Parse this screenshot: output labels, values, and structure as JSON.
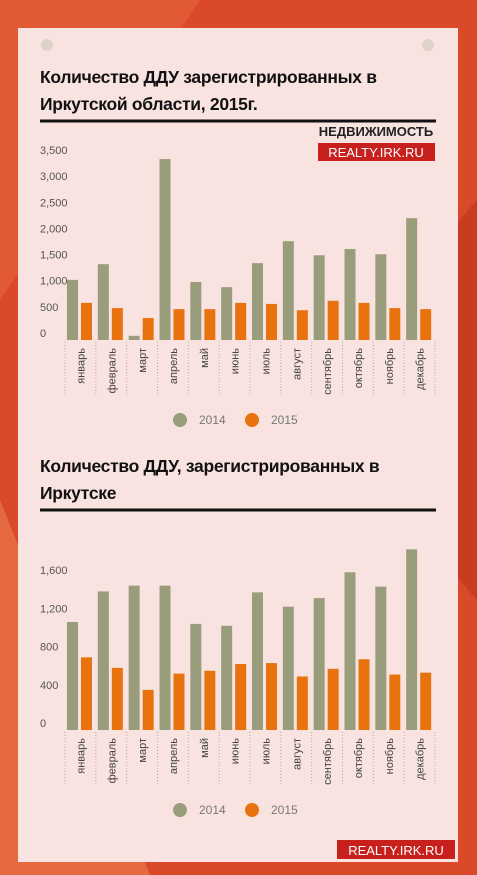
{
  "logo": {
    "name": "НЕДВИЖИМОСТЬ",
    "site": "REALTY.IRK.RU"
  },
  "footer": "REALTY.IRK.RU",
  "chart_data": [
    {
      "type": "bar",
      "title": "Количество ДДУ зарегистрированных в Иркутской области, 2015г.",
      "categories": [
        "январь",
        "февраль",
        "март",
        "апрель",
        "май",
        "июнь",
        "июль",
        "август",
        "сентябрь",
        "октябрь",
        "ноябрь",
        "декабрь"
      ],
      "series": [
        {
          "name": "2014",
          "color": "#9a9d7c",
          "values": [
            1150,
            1450,
            80,
            3460,
            1110,
            1010,
            1470,
            1890,
            1620,
            1740,
            1640,
            2330
          ]
        },
        {
          "name": "2015",
          "color": "#e8730e",
          "values": [
            710,
            610,
            420,
            590,
            590,
            710,
            690,
            570,
            750,
            710,
            610,
            590
          ]
        }
      ],
      "ylim": [
        0,
        3700
      ],
      "yticks": [
        0,
        500,
        {
          "value": 1000,
          "label": "1,000"
        },
        {
          "value": 1500,
          "label": "1,500"
        },
        {
          "value": 2000,
          "label": "2,000"
        },
        {
          "value": 2500,
          "label": "2,500"
        },
        {
          "value": 3000,
          "label": "3,000"
        },
        {
          "value": 3500,
          "label": "3,500"
        }
      ],
      "grid": false,
      "legend": "bottom"
    },
    {
      "type": "bar",
      "title": "Количество ДДУ, зарегистрированных в Иркутске",
      "categories": [
        "январь",
        "февраль",
        "март",
        "апрель",
        "май",
        "июнь",
        "июль",
        "август",
        "сентябрь",
        "октябрь",
        "ноябрь",
        "декабрь"
      ],
      "series": [
        {
          "name": "2014",
          "color": "#9a9d7c",
          "values": [
            1130,
            1450,
            1510,
            1510,
            1110,
            1090,
            1440,
            1290,
            1380,
            1650,
            1500,
            1890
          ]
        },
        {
          "name": "2015",
          "color": "#e8730e",
          "values": [
            760,
            650,
            420,
            590,
            620,
            690,
            700,
            560,
            640,
            740,
            580,
            600
          ]
        }
      ],
      "ylim": [
        0,
        1950
      ],
      "yticks": [
        0,
        400,
        800,
        {
          "value": 1200,
          "label": "1,200"
        },
        {
          "value": 1600,
          "label": "1,600"
        }
      ],
      "grid": false,
      "legend": "bottom"
    }
  ]
}
